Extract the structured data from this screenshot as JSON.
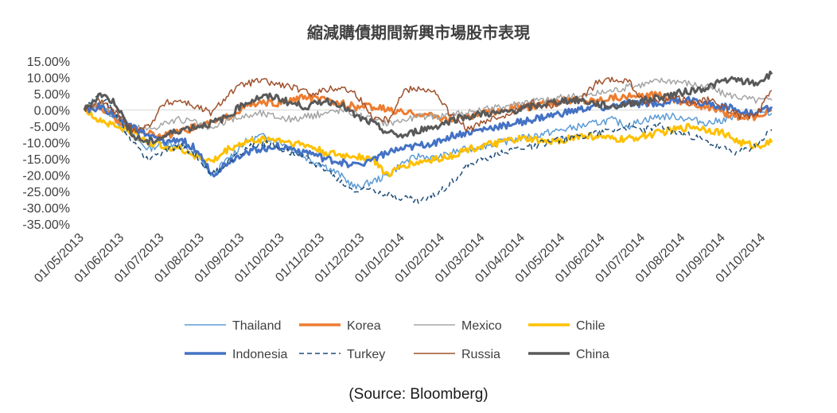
{
  "chart_data": {
    "type": "line",
    "title": "縮減購債期間新興市場股市表現",
    "xlabel": "",
    "ylabel": "",
    "ylim": [
      -35,
      15
    ],
    "y_ticks": [
      "15.00%",
      "10.00%",
      "5.00%",
      "0.00%",
      "-5.00%",
      "-10.00%",
      "-15.00%",
      "-20.00%",
      "-25.00%",
      "-30.00%",
      "-35.00%"
    ],
    "x_ticks": [
      "01/05/2013",
      "01/06/2013",
      "01/07/2013",
      "01/08/2013",
      "01/09/2013",
      "01/10/2013",
      "01/11/2013",
      "01/12/2013",
      "01/01/2014",
      "01/02/2014",
      "01/03/2014",
      "01/04/2014",
      "01/05/2014",
      "01/06/2014",
      "01/07/2014",
      "01/08/2014",
      "01/09/2014",
      "01/10/2014"
    ],
    "x_end": "31/10/2014",
    "grid": false,
    "legend_position": "bottom",
    "series": [
      {
        "name": "Thailand",
        "color": "#5b9bd5",
        "dash": "solid",
        "weight": "thin",
        "values": [
          0,
          2,
          -3,
          -8,
          -12,
          -10,
          -11,
          -14,
          -20,
          -15,
          -10,
          -8,
          -9,
          -12,
          -15,
          -17,
          -20,
          -24,
          -22,
          -20,
          -16,
          -14,
          -15,
          -13,
          -12,
          -11,
          -10,
          -9,
          -8,
          -7,
          -6,
          -5,
          -4,
          -3,
          -5,
          -3,
          -2,
          -2,
          -3,
          -4,
          -3,
          -2,
          -1,
          -1
        ]
      },
      {
        "name": "Korea",
        "color": "#ed7d31",
        "dash": "solid",
        "weight": "thick",
        "values": [
          0,
          1,
          -3,
          -6,
          -7,
          -8,
          -7,
          -5,
          -4,
          -2,
          1,
          2,
          2,
          3,
          4,
          3,
          2,
          1,
          1,
          0,
          -1,
          -1,
          -2,
          -3,
          -2,
          -1,
          0,
          1,
          1,
          2,
          3,
          3,
          3,
          4,
          4,
          4,
          5,
          3,
          2,
          1,
          -1,
          -2,
          -2,
          0
        ]
      },
      {
        "name": "Mexico",
        "color": "#a5a5a5",
        "dash": "solid",
        "weight": "thin",
        "values": [
          0,
          2,
          -2,
          -5,
          -6,
          -4,
          -3,
          -4,
          -6,
          -3,
          -2,
          -1,
          -2,
          -3,
          -2,
          -1,
          0,
          -1,
          -3,
          -4,
          -3,
          -2,
          -2,
          -1,
          -1,
          0,
          1,
          2,
          3,
          3,
          4,
          4,
          5,
          6,
          7,
          8,
          9,
          9,
          8,
          7,
          5,
          4,
          3,
          3
        ]
      },
      {
        "name": "Chile",
        "color": "#ffc000",
        "dash": "solid",
        "weight": "thick",
        "values": [
          0,
          -3,
          -5,
          -7,
          -10,
          -11,
          -12,
          -14,
          -16,
          -12,
          -10,
          -9,
          -9,
          -10,
          -11,
          -13,
          -14,
          -14,
          -15,
          -20,
          -17,
          -16,
          -15,
          -14,
          -12,
          -11,
          -10,
          -9,
          -9,
          -10,
          -9,
          -8,
          -8,
          -9,
          -9,
          -8,
          -7,
          -6,
          -5,
          -6,
          -7,
          -10,
          -11,
          -10
        ]
      },
      {
        "name": "Indonesia",
        "color": "#4472c4",
        "dash": "solid",
        "weight": "thick",
        "values": [
          0,
          1,
          -2,
          -5,
          -8,
          -10,
          -9,
          -12,
          -20,
          -16,
          -13,
          -12,
          -11,
          -12,
          -13,
          -15,
          -16,
          -17,
          -15,
          -13,
          -12,
          -11,
          -10,
          -8,
          -7,
          -6,
          -5,
          -4,
          -3,
          -2,
          -1,
          0,
          1,
          1,
          2,
          2,
          2,
          3,
          3,
          2,
          1,
          0,
          -1,
          1
        ]
      },
      {
        "name": "Turkey",
        "color": "#1f4e79",
        "dash": "dashed",
        "weight": "thin",
        "values": [
          0,
          5,
          -2,
          -10,
          -15,
          -13,
          -11,
          -14,
          -20,
          -16,
          -12,
          -10,
          -11,
          -13,
          -15,
          -18,
          -22,
          -25,
          -24,
          -26,
          -27,
          -28,
          -26,
          -22,
          -17,
          -15,
          -13,
          -12,
          -11,
          -10,
          -9,
          -8,
          -7,
          -6,
          -5,
          -6,
          -5,
          -7,
          -8,
          -10,
          -12,
          -13,
          -11,
          -6
        ]
      },
      {
        "name": "Russia",
        "color": "#a0522d",
        "dash": "solid",
        "weight": "thin",
        "values": [
          0,
          3,
          -1,
          -6,
          -5,
          2,
          3,
          1,
          -1,
          5,
          8,
          9,
          8,
          7,
          5,
          6,
          7,
          5,
          -2,
          -3,
          6,
          7,
          5,
          -2,
          -6,
          -4,
          -2,
          0,
          2,
          1,
          3,
          3,
          8,
          9,
          9,
          2,
          3,
          4,
          2,
          3,
          1,
          -2,
          -2,
          6
        ]
      },
      {
        "name": "China",
        "color": "#595959",
        "dash": "solid",
        "weight": "thick",
        "values": [
          0,
          5,
          2,
          -8,
          -10,
          -8,
          -6,
          -5,
          -4,
          -2,
          2,
          4,
          4,
          2,
          1,
          3,
          2,
          -2,
          -4,
          -7,
          -8,
          -6,
          -5,
          -3,
          -2,
          -1,
          -1,
          0,
          1,
          2,
          3,
          3,
          2,
          1,
          2,
          3,
          4,
          5,
          6,
          7,
          9,
          9,
          8,
          11
        ]
      }
    ]
  },
  "source": "(Source: Bloomberg)"
}
